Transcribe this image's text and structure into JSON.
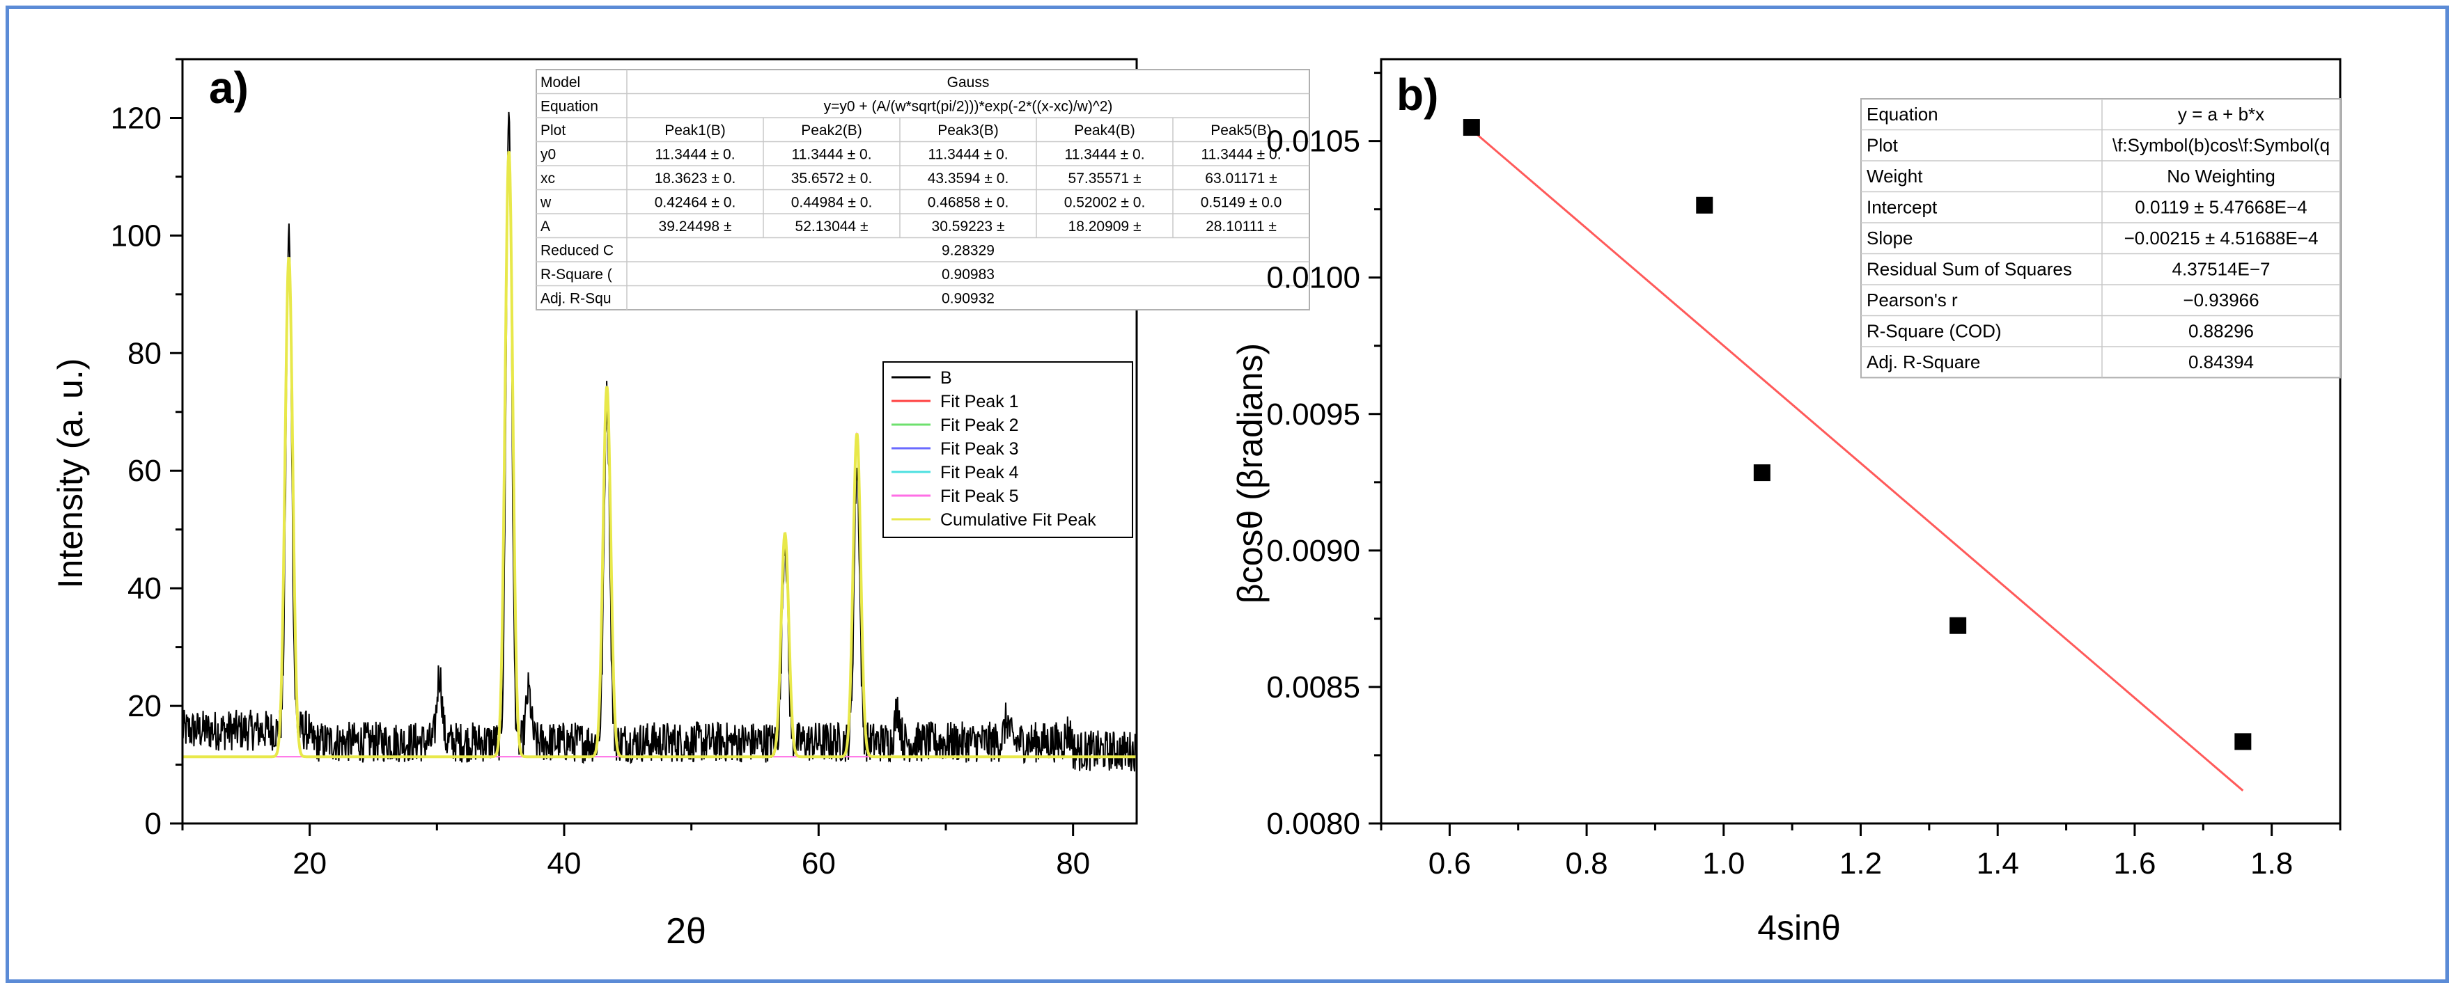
{
  "colors": {
    "frame": "#5b8bd6",
    "data": "#000000",
    "fit_a": "#e8e84a",
    "fit_b": "#ff5a5a"
  },
  "chart_data": [
    {
      "type": "line",
      "panel_label": "a)",
      "title": "",
      "xlabel": "2θ",
      "ylabel": "Intensity (a. u.)",
      "xlim": [
        10,
        85
      ],
      "ylim": [
        0,
        130
      ],
      "xticks": [
        "20",
        "40",
        "60",
        "80"
      ],
      "yticks": [
        "0",
        "20",
        "40",
        "60",
        "80",
        "100",
        "120"
      ],
      "baseline": 11.3444,
      "peaks": [
        {
          "name": "Peak1(B)",
          "xc": 18.3623,
          "height": 85,
          "observed_max": 96
        },
        {
          "name": "Peak2(B)",
          "xc": 35.6572,
          "height": 103,
          "observed_max": 119
        },
        {
          "name": "Peak3(B)",
          "xc": 43.3594,
          "height": 63,
          "observed_max": 70
        },
        {
          "name": "Peak4(B)",
          "xc": 57.35571,
          "height": 38,
          "observed_max": 46
        },
        {
          "name": "Peak5(B)",
          "xc": 63.01171,
          "height": 55,
          "observed_max": 58
        }
      ],
      "minor_peaks": [
        {
          "x": 30.2,
          "y": 27
        },
        {
          "x": 37.2,
          "y": 24
        },
        {
          "x": 66.2,
          "y": 21
        },
        {
          "x": 74.8,
          "y": 19
        },
        {
          "x": 79.6,
          "y": 17
        }
      ],
      "noise_level": 14,
      "legend": {
        "position": "right",
        "entries": [
          {
            "label": "B",
            "color": "#000000"
          },
          {
            "label": "Fit Peak 1",
            "color": "#ff4040"
          },
          {
            "label": "Fit Peak 2",
            "color": "#6ee06e"
          },
          {
            "label": "Fit Peak 3",
            "color": "#6a6aff"
          },
          {
            "label": "Fit Peak 4",
            "color": "#4de0e0"
          },
          {
            "label": "Fit Peak 5",
            "color": "#ff6ee6"
          },
          {
            "label": "Cumulative Fit Peak",
            "color": "#e8e84a"
          }
        ]
      },
      "fit_table": {
        "rows": [
          [
            "Model",
            "Gauss"
          ],
          [
            "Equation",
            "y=y0 + (A/(w*sqrt(pi/2)))*exp(-2*((x-xc)/w)^2)"
          ],
          [
            "Plot",
            "Peak1(B)",
            "Peak2(B)",
            "Peak3(B)",
            "Peak4(B)",
            "Peak5(B)"
          ],
          [
            "y0",
            "11.3444 ± 0.",
            "11.3444 ± 0.",
            "11.3444 ± 0.",
            "11.3444 ± 0.",
            "11.3444 ± 0."
          ],
          [
            "xc",
            "18.3623 ± 0.",
            "35.6572 ± 0.",
            "43.3594 ± 0.",
            "57.35571 ±",
            "63.01171 ±"
          ],
          [
            "w",
            "0.42464 ± 0.",
            "0.44984 ± 0.",
            "0.46858 ± 0.",
            "0.52002 ± 0.",
            "0.5149 ± 0.0"
          ],
          [
            "A",
            "39.24498 ±",
            "52.13044 ±",
            "30.59223 ±",
            "18.20909 ±",
            "28.10111 ±"
          ],
          [
            "Reduced C",
            "9.28329"
          ],
          [
            "R-Square (",
            "0.90983"
          ],
          [
            "Adj. R-Squ",
            "0.90932"
          ]
        ]
      }
    },
    {
      "type": "scatter",
      "panel_label": "b)",
      "title": "",
      "xlabel": "4sinθ",
      "ylabel": "βcosθ (βradians)",
      "xlim": [
        0.5,
        1.9
      ],
      "ylim": [
        0.008,
        0.0108
      ],
      "xticks": [
        "0.6",
        "0.8",
        "1.0",
        "1.2",
        "1.4",
        "1.6",
        "1.8"
      ],
      "yticks": [
        "0.0080",
        "0.0085",
        "0.0090",
        "0.0095",
        "0.0100",
        "0.0105"
      ],
      "points": [
        {
          "x": 0.632,
          "y": 0.01055
        },
        {
          "x": 0.972,
          "y": 0.010265
        },
        {
          "x": 1.056,
          "y": 0.009285
        },
        {
          "x": 1.342,
          "y": 0.008725
        },
        {
          "x": 1.758,
          "y": 0.0083
        }
      ],
      "fit_line": {
        "intercept": 0.0119,
        "slope": -0.00215,
        "x_start": 0.632,
        "x_end": 1.758
      },
      "fit_table": {
        "rows": [
          [
            "Equation",
            "y = a + b*x"
          ],
          [
            "Plot",
            "\\f:Symbol(b)cos\\f:Symbol(q"
          ],
          [
            "Weight",
            "No Weighting"
          ],
          [
            "Intercept",
            "0.0119 ± 5.47668E−4"
          ],
          [
            "Slope",
            "−0.00215 ± 4.51688E−4"
          ],
          [
            "Residual Sum of Squares",
            "4.37514E−7"
          ],
          [
            "Pearson's r",
            "−0.93966"
          ],
          [
            "R-Square (COD)",
            "0.88296"
          ],
          [
            "Adj. R-Square",
            "0.84394"
          ]
        ]
      }
    }
  ]
}
